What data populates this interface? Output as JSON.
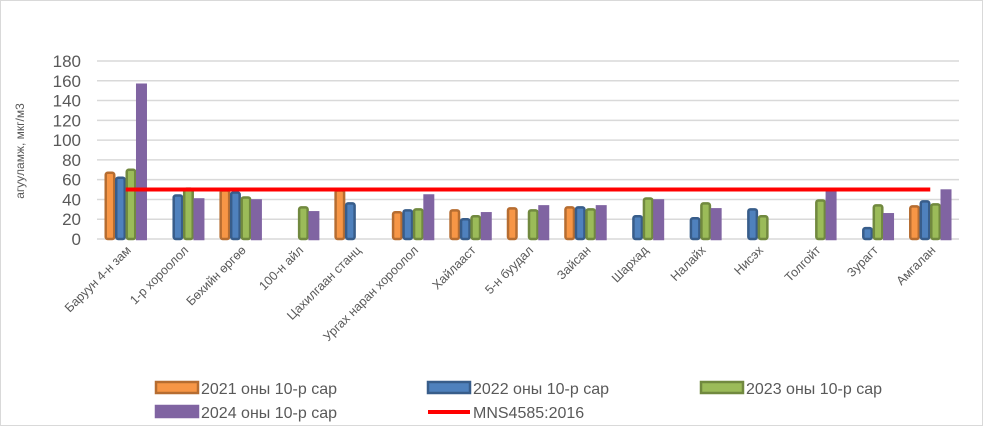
{
  "chart_data": {
    "type": "bar",
    "title": "",
    "xlabel": "",
    "ylabel": "агууламж, мкг/м3",
    "ylim": [
      0,
      180
    ],
    "yticks": [
      0,
      20,
      40,
      60,
      80,
      100,
      120,
      140,
      160,
      180
    ],
    "grid": true,
    "legend_position": "bottom",
    "categories": [
      "Баруун 4-н зам",
      "1-р хороолол",
      "Бөхийн өргөө",
      "100-н айл",
      "Цахилгаан станц",
      "Ургах наран хороолол",
      "Хайлааст",
      "5-н буудал",
      "Зайсан",
      "Шархад",
      "Налайх",
      "Нисэх",
      "Толгойт",
      "Зурагт",
      "Амгалан"
    ],
    "series": [
      {
        "name": "2021 оны 10-р сар",
        "color": "#f79646",
        "border": "#b66d31",
        "values": [
          68,
          null,
          50,
          null,
          50,
          28,
          30,
          32,
          33,
          null,
          null,
          null,
          null,
          null,
          34
        ]
      },
      {
        "name": "2022 оны 10-р сар",
        "color": "#4f81bd",
        "border": "#385d8a",
        "values": [
          63,
          45,
          48,
          null,
          37,
          30,
          21,
          null,
          33,
          24,
          22,
          31,
          null,
          12,
          39
        ]
      },
      {
        "name": "2023 оны 10-р сар",
        "color": "#9bbb59",
        "border": "#71893f",
        "values": [
          71,
          52,
          43,
          33,
          null,
          31,
          24,
          30,
          31,
          42,
          37,
          24,
          40,
          35,
          36
        ]
      },
      {
        "name": "2024 оны 10-р сар",
        "color": "#8064a2",
        "border": "#8064a2",
        "values": [
          157,
          41,
          40,
          28,
          null,
          45,
          27,
          34,
          34,
          40,
          31,
          null,
          50,
          26,
          50
        ]
      }
    ],
    "reference_line": {
      "name": "MNS4585:2016",
      "value": 50,
      "color": "#ff0000"
    }
  }
}
